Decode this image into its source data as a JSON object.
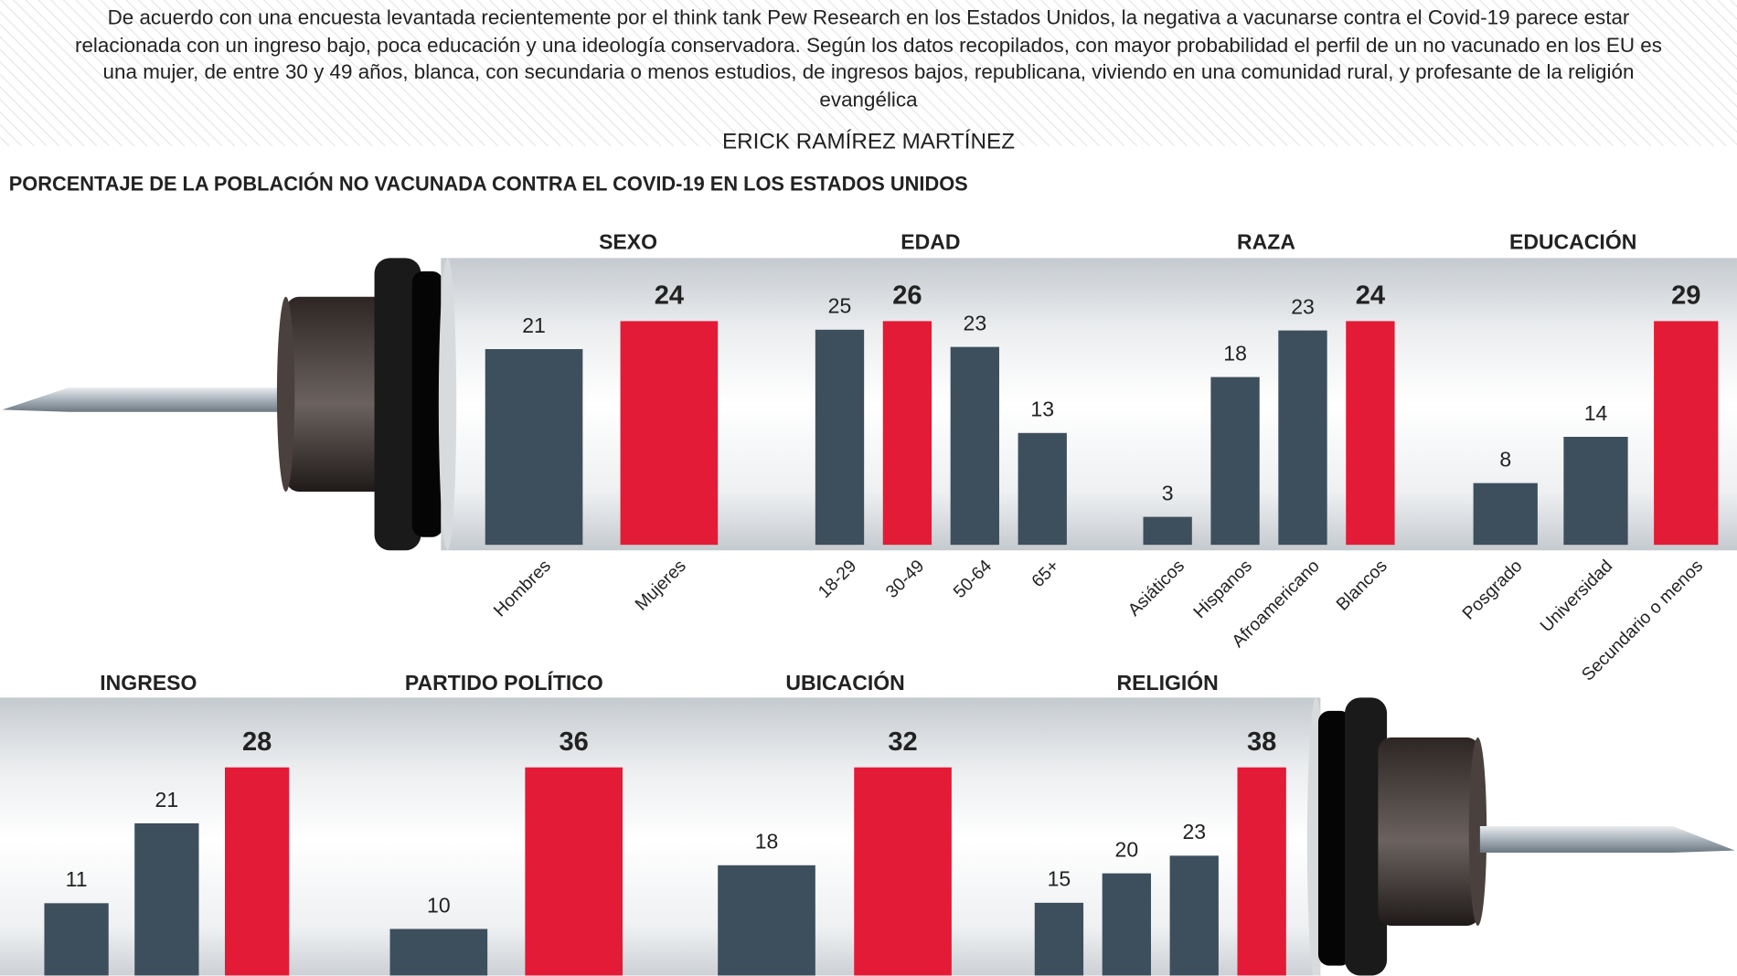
{
  "intro": "De acuerdo con una encuesta levantada recientemente por el think tank Pew Research en los Estados Unidos, la negativa a vacunarse contra el Covid-19 parece estar relacionada con un ingreso bajo, poca educación y una ideología conservadora. Según los datos recopilados, con mayor probabilidad el perfil de un no vacunado en los EU es una mujer, de entre 30 y 49 años, blanca, con secundaria o menos estudios, de ingresos bajos, republicana, viviendo en una comunidad rural, y profesante de la religión evangélica",
  "author": "ERICK RAMÍREZ MARTÍNEZ",
  "heading": "PORCENTAJE DE LA POBLACIÓN NO VACUNADA CONTRA EL COVID-19 EN LOS ESTADOS UNIDOS",
  "chart_data": [
    {
      "type": "bar",
      "title": "SEXO",
      "categories": [
        "Hombres",
        "Mujeres"
      ],
      "values": [
        21,
        24
      ],
      "colors": [
        "#3d4f5c",
        "#e31b36"
      ]
    },
    {
      "type": "bar",
      "title": "EDAD",
      "categories": [
        "18-29",
        "30-49",
        "50-64",
        "65+"
      ],
      "values": [
        25,
        26,
        23,
        13
      ],
      "colors": [
        "#3d4f5c",
        "#e31b36",
        "#3d4f5c",
        "#3d4f5c"
      ]
    },
    {
      "type": "bar",
      "title": "RAZA",
      "categories": [
        "Asiáticos",
        "Hispanos",
        "Afroamericano",
        "Blancos"
      ],
      "values": [
        3,
        18,
        23,
        24
      ],
      "colors": [
        "#3d4f5c",
        "#3d4f5c",
        "#3d4f5c",
        "#e31b36"
      ]
    },
    {
      "type": "bar",
      "title": "EDUCACIÓN",
      "categories": [
        "Posgrado",
        "Universidad",
        "Secundario o menos"
      ],
      "values": [
        8,
        14,
        29
      ],
      "colors": [
        "#3d4f5c",
        "#3d4f5c",
        "#e31b36"
      ]
    },
    {
      "type": "bar",
      "title": "INGRESO",
      "categories": [
        null,
        null,
        null
      ],
      "values": [
        11,
        21,
        28
      ],
      "colors": [
        "#3d4f5c",
        "#3d4f5c",
        "#e31b36"
      ]
    },
    {
      "type": "bar",
      "title": "PARTIDO POLÍTICO",
      "categories": [
        null,
        null
      ],
      "values": [
        10,
        36
      ],
      "colors": [
        "#3d4f5c",
        "#e31b36"
      ]
    },
    {
      "type": "bar",
      "title": "UBICACIÓN",
      "categories": [
        null,
        null
      ],
      "values": [
        18,
        32
      ],
      "colors": [
        "#3d4f5c",
        "#e31b36"
      ]
    },
    {
      "type": "bar",
      "title": "RELIGIÓN",
      "categories": [
        null,
        null,
        null,
        null
      ],
      "values": [
        15,
        20,
        23,
        38
      ],
      "colors": [
        "#3d4f5c",
        "#3d4f5c",
        "#3d4f5c",
        "#e31b36"
      ]
    }
  ]
}
